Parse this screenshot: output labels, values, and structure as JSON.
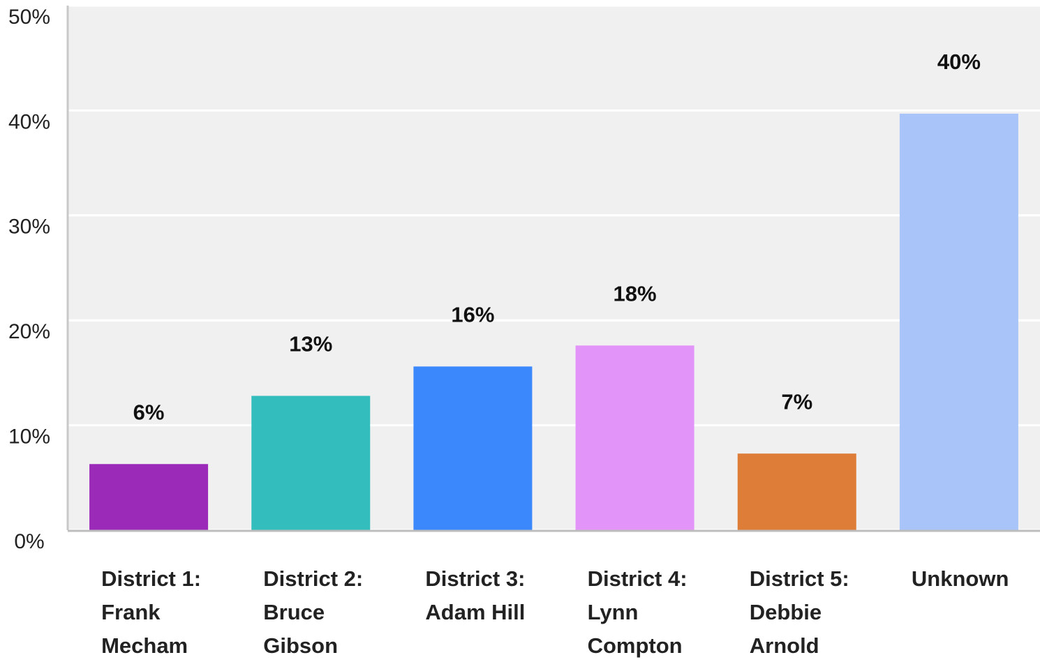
{
  "chart_data": {
    "type": "bar",
    "categories": [
      "District 1: Frank Mecham",
      "District 2: Bruce Gibson",
      "District 3: Adam Hill",
      "District 4: Lynn Compton",
      "District 5: Debbie Arnold",
      "Unknown"
    ],
    "values": [
      6.3,
      12.8,
      15.6,
      17.6,
      7.3,
      39.7
    ],
    "value_labels": [
      "6%",
      "13%",
      "16%",
      "18%",
      "7%",
      "40%"
    ],
    "colors": [
      "#9b2ab9",
      "#33bdbd",
      "#3b88fc",
      "#e294f8",
      "#dd7d38",
      "#a8c4f8"
    ],
    "ylim": [
      0,
      50
    ],
    "yticks": [
      {
        "value": 0,
        "label": "0%"
      },
      {
        "value": 10,
        "label": "10%"
      },
      {
        "value": 20,
        "label": "20%"
      },
      {
        "value": 30,
        "label": "30%"
      },
      {
        "value": 40,
        "label": "40%"
      },
      {
        "value": 50,
        "label": "50%"
      }
    ],
    "grid": true
  }
}
